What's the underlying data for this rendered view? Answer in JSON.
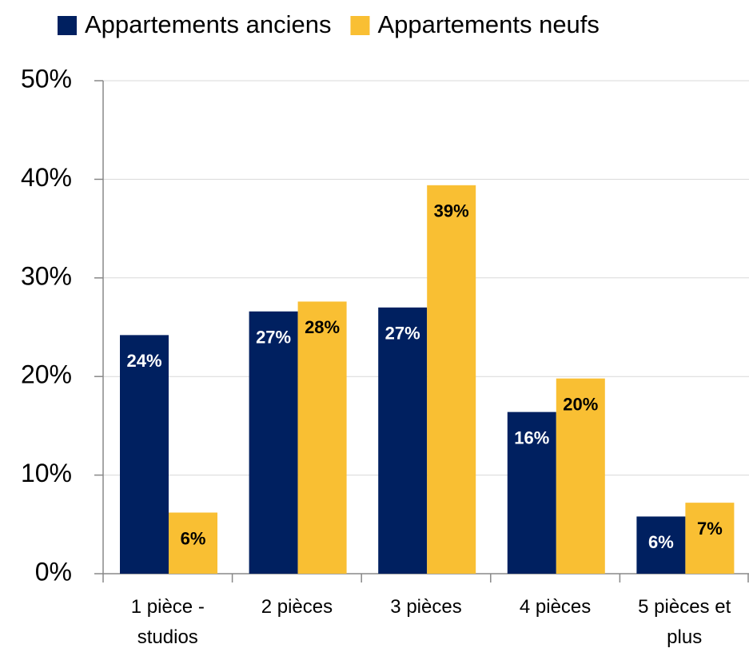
{
  "chart_data": {
    "type": "bar",
    "categories": [
      "1 pièce - studios",
      "2 pièces",
      "3 pièces",
      "4 pièces",
      "5 pièces et plus"
    ],
    "series": [
      {
        "name": "Appartements anciens",
        "color": "#002060",
        "values": [
          24.2,
          26.6,
          27.0,
          16.4,
          5.8
        ],
        "value_labels": [
          "24%",
          "27%",
          "27%",
          "16%",
          "6%"
        ]
      },
      {
        "name": "Appartements neufs",
        "color": "#F9BF33",
        "values": [
          6.2,
          27.6,
          39.4,
          19.8,
          7.2
        ],
        "value_labels": [
          "6%",
          "28%",
          "39%",
          "20%",
          "7%"
        ]
      }
    ],
    "ylim": [
      0,
      50
    ],
    "yticks": [
      {
        "value": 0,
        "label": "0%"
      },
      {
        "value": 10,
        "label": "10%"
      },
      {
        "value": 20,
        "label": "20%"
      },
      {
        "value": 30,
        "label": "30%"
      },
      {
        "value": 40,
        "label": "40%"
      },
      {
        "value": 50,
        "label": "50%"
      }
    ],
    "grid": true,
    "legend": "top"
  }
}
